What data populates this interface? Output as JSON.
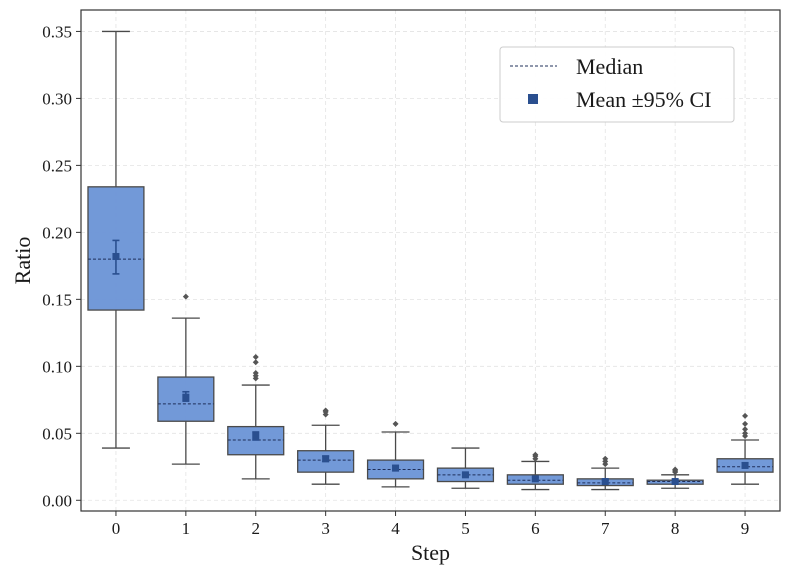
{
  "chart_data": {
    "type": "box",
    "xlabel": "Step",
    "ylabel": "Ratio",
    "ylim": [
      -0.008,
      0.366
    ],
    "yticks": [
      0.0,
      0.05,
      0.1,
      0.15,
      0.2,
      0.25,
      0.3,
      0.35
    ],
    "ytick_labels": [
      "0.00",
      "0.05",
      "0.10",
      "0.15",
      "0.20",
      "0.25",
      "0.30",
      "0.35"
    ],
    "categories": [
      "0",
      "1",
      "2",
      "3",
      "4",
      "5",
      "6",
      "7",
      "8",
      "9"
    ],
    "grid": true,
    "legend": {
      "placement": "top-right",
      "items": [
        {
          "label": "Median",
          "marker": "dashed-line"
        },
        {
          "label": "Mean ±95% CI",
          "marker": "square"
        }
      ]
    },
    "colors": {
      "box_fill": "#6a93d6",
      "box_edge": "#4a4a4a",
      "median_line": "#1f2f5a",
      "mean_marker": "#2a4f8f",
      "ci_line": "#2a4f8f",
      "flier": "#555555",
      "grid": "#e3e3e3"
    },
    "boxes": [
      {
        "step": "0",
        "whislo": 0.039,
        "q1": 0.142,
        "med": 0.18,
        "q3": 0.234,
        "whishi": 0.35,
        "mean": 0.182,
        "ci": [
          0.169,
          0.194
        ],
        "fliers": []
      },
      {
        "step": "1",
        "whislo": 0.027,
        "q1": 0.059,
        "med": 0.072,
        "q3": 0.092,
        "whishi": 0.136,
        "mean": 0.077,
        "ci": [
          0.074,
          0.081
        ],
        "fliers": [
          0.152
        ]
      },
      {
        "step": "2",
        "whislo": 0.016,
        "q1": 0.034,
        "med": 0.045,
        "q3": 0.055,
        "whishi": 0.086,
        "mean": 0.048,
        "ci": [
          0.045,
          0.051
        ],
        "fliers": [
          0.091,
          0.093,
          0.095,
          0.103,
          0.107
        ]
      },
      {
        "step": "3",
        "whislo": 0.012,
        "q1": 0.021,
        "med": 0.03,
        "q3": 0.037,
        "whishi": 0.056,
        "mean": 0.031,
        "ci": [
          0.029,
          0.033
        ],
        "fliers": [
          0.064,
          0.066,
          0.067
        ]
      },
      {
        "step": "4",
        "whislo": 0.01,
        "q1": 0.016,
        "med": 0.023,
        "q3": 0.03,
        "whishi": 0.051,
        "mean": 0.024,
        "ci": [
          0.023,
          0.026
        ],
        "fliers": [
          0.057
        ]
      },
      {
        "step": "5",
        "whislo": 0.009,
        "q1": 0.014,
        "med": 0.019,
        "q3": 0.024,
        "whishi": 0.039,
        "mean": 0.019,
        "ci": [
          0.018,
          0.02
        ],
        "fliers": []
      },
      {
        "step": "6",
        "whislo": 0.008,
        "q1": 0.012,
        "med": 0.015,
        "q3": 0.019,
        "whishi": 0.029,
        "mean": 0.016,
        "ci": [
          0.015,
          0.017
        ],
        "fliers": [
          0.031,
          0.033,
          0.034
        ]
      },
      {
        "step": "7",
        "whislo": 0.008,
        "q1": 0.011,
        "med": 0.013,
        "q3": 0.016,
        "whishi": 0.024,
        "mean": 0.014,
        "ci": [
          0.013,
          0.015
        ],
        "fliers": [
          0.027,
          0.029,
          0.031
        ]
      },
      {
        "step": "8",
        "whislo": 0.009,
        "q1": 0.012,
        "med": 0.014,
        "q3": 0.015,
        "whishi": 0.019,
        "mean": 0.014,
        "ci": [
          0.0135,
          0.0145
        ],
        "fliers": [
          0.021,
          0.022,
          0.023
        ]
      },
      {
        "step": "9",
        "whislo": 0.012,
        "q1": 0.021,
        "med": 0.025,
        "q3": 0.031,
        "whishi": 0.045,
        "mean": 0.026,
        "ci": [
          0.025,
          0.028
        ],
        "fliers": [
          0.048,
          0.05,
          0.053,
          0.057,
          0.063
        ]
      }
    ]
  }
}
